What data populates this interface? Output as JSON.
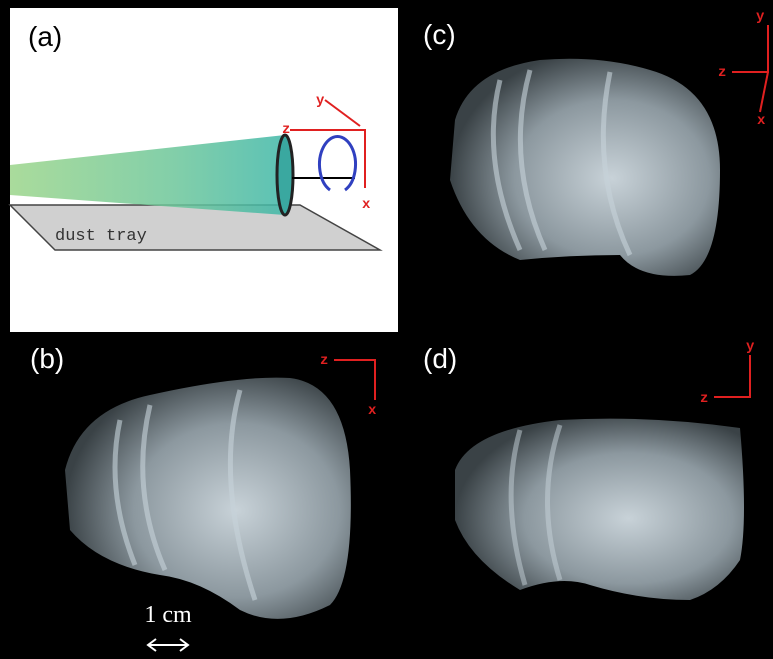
{
  "panels": [
    {
      "label": "(a)",
      "tray_label": "dust tray",
      "axes": [
        "z",
        "y",
        "x"
      ]
    },
    {
      "label": "(b)",
      "axes": [
        "z",
        "x"
      ],
      "scale_bar": "1 cm"
    },
    {
      "label": "(c)",
      "axes": [
        "y",
        "z",
        "x"
      ]
    },
    {
      "label": "(d)",
      "axes": [
        "y",
        "z"
      ]
    }
  ]
}
